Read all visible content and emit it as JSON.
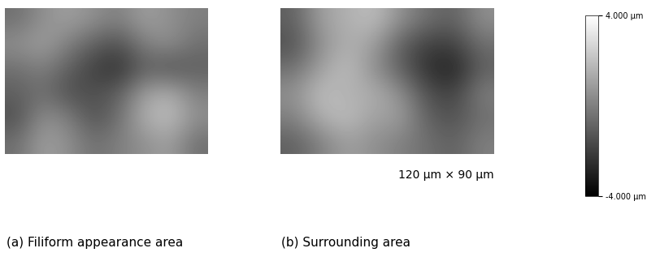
{
  "chart_data": [
    {
      "type": "heatmap",
      "title": "(a) Filiform appearance area",
      "tick_labels": false,
      "cells": [
        [
          -0.5,
          0.5,
          1.0,
          0.5,
          0.0,
          1.0,
          0.5,
          0.0
        ],
        [
          0.5,
          1.0,
          0.0,
          -1.0,
          -1.5,
          0.0,
          0.5,
          -0.5
        ],
        [
          -0.5,
          0.0,
          -1.0,
          -2.0,
          -2.5,
          -1.0,
          -1.5,
          -1.0
        ],
        [
          -1.0,
          -0.5,
          -1.5,
          -1.5,
          -1.0,
          1.0,
          1.5,
          0.0
        ],
        [
          -1.5,
          0.5,
          0.0,
          -1.5,
          -0.5,
          1.5,
          2.0,
          0.5
        ],
        [
          -0.5,
          1.0,
          0.5,
          -0.5,
          0.0,
          0.5,
          1.0,
          -0.5
        ]
      ]
    },
    {
      "type": "heatmap",
      "title": "(b) Surrounding area",
      "annotation": "120 μm × 90 μm",
      "tick_labels": false,
      "cells": [
        [
          -1.0,
          1.0,
          1.5,
          2.0,
          0.5,
          -0.5,
          -1.0,
          0.5
        ],
        [
          -1.5,
          0.5,
          1.5,
          1.0,
          -1.0,
          -2.0,
          -2.0,
          -0.5
        ],
        [
          -0.5,
          1.0,
          2.0,
          0.5,
          -1.0,
          -2.5,
          -3.0,
          -1.0
        ],
        [
          0.5,
          2.0,
          1.5,
          1.5,
          0.5,
          -1.5,
          -2.0,
          0.0
        ],
        [
          0.0,
          1.5,
          2.0,
          1.0,
          1.0,
          -1.0,
          -1.5,
          -0.5
        ],
        [
          -1.0,
          0.0,
          1.0,
          0.5,
          0.0,
          -0.5,
          -1.0,
          0.0
        ]
      ]
    }
  ],
  "colorbar_range": [
    -4,
    4
  ],
  "colorbar_ticks": [
    {
      "value": 4,
      "label": "4.000 μm"
    },
    {
      "value": -4,
      "label": "-4.000 μm"
    }
  ]
}
